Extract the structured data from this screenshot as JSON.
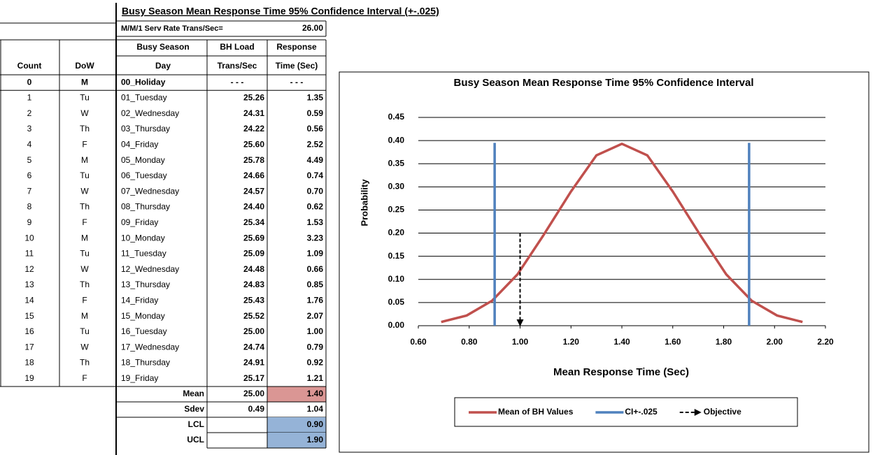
{
  "table": {
    "title": "Busy Season Mean Response Time 95% Confidence Interval (+-.025)",
    "serv_rate_label": "M/M/1 Serv Rate Trans/Sec=",
    "serv_rate": "26.00",
    "left_header": [
      "Count",
      "DoW"
    ],
    "header_rows": [
      [
        "Busy Season",
        "BH Load",
        "Response"
      ],
      [
        "Day",
        "Trans/Sec",
        "Time (Sec)"
      ]
    ],
    "rows": [
      [
        "0",
        "M",
        "00_Holiday",
        "- - -",
        "- - -"
      ],
      [
        "1",
        "Tu",
        "01_Tuesday",
        "25.26",
        "1.35"
      ],
      [
        "2",
        "W",
        "02_Wednesday",
        "24.31",
        "0.59"
      ],
      [
        "3",
        "Th",
        "03_Thursday",
        "24.22",
        "0.56"
      ],
      [
        "4",
        "F",
        "04_Friday",
        "25.60",
        "2.52"
      ],
      [
        "5",
        "M",
        "05_Monday",
        "25.78",
        "4.49"
      ],
      [
        "6",
        "Tu",
        "06_Tuesday",
        "24.66",
        "0.74"
      ],
      [
        "7",
        "W",
        "07_Wednesday",
        "24.57",
        "0.70"
      ],
      [
        "8",
        "Th",
        "08_Thursday",
        "24.40",
        "0.62"
      ],
      [
        "9",
        "F",
        "09_Friday",
        "25.34",
        "1.53"
      ],
      [
        "10",
        "M",
        "10_Monday",
        "25.69",
        "3.23"
      ],
      [
        "11",
        "Tu",
        "11_Tuesday",
        "25.09",
        "1.09"
      ],
      [
        "12",
        "W",
        "12_Wednesday",
        "24.48",
        "0.66"
      ],
      [
        "13",
        "Th",
        "13_Thursday",
        "24.83",
        "0.85"
      ],
      [
        "14",
        "F",
        "14_Friday",
        "25.43",
        "1.76"
      ],
      [
        "15",
        "M",
        "15_Monday",
        "25.52",
        "2.07"
      ],
      [
        "16",
        "Tu",
        "16_Tuesday",
        "25.00",
        "1.00"
      ],
      [
        "17",
        "W",
        "17_Wednesday",
        "24.74",
        "0.79"
      ],
      [
        "18",
        "Th",
        "18_Thursday",
        "24.91",
        "0.92"
      ],
      [
        "19",
        "F",
        "19_Friday",
        "25.17",
        "1.21"
      ]
    ],
    "summary": [
      [
        "Mean",
        "25.00",
        "1.40"
      ],
      [
        "Sdev",
        "0.49",
        "1.04"
      ],
      [
        "LCL",
        "0.90"
      ],
      [
        "UCL",
        "1.90"
      ]
    ]
  },
  "chart_data": {
    "type": "line",
    "title": "Busy Season Mean Response Time 95% Confidence Interval",
    "x_label": "Mean Response Time (Sec)",
    "y_label": "Probability",
    "xlim": [
      0.6,
      2.2
    ],
    "xticks": [
      {
        "value": 0.6,
        "label": "0.60"
      },
      {
        "value": 0.8,
        "label": "0.80"
      },
      {
        "value": 1.0,
        "label": "1.00"
      },
      {
        "value": 1.2,
        "label": "1.20"
      },
      {
        "value": 1.4,
        "label": "1.40"
      },
      {
        "value": 1.6,
        "label": "1.60"
      },
      {
        "value": 1.8,
        "label": "1.80"
      },
      {
        "value": 2.0,
        "label": "2.00"
      },
      {
        "value": 2.2,
        "label": "2.20"
      }
    ],
    "ylim": [
      0,
      0.45
    ],
    "yticks": [
      {
        "value": 0,
        "label": "0.00"
      },
      {
        "value": 0.05,
        "label": "0.05"
      },
      {
        "value": 0.1,
        "label": "0.10"
      },
      {
        "value": 0.15,
        "label": "0.15"
      },
      {
        "value": 0.2,
        "label": "0.20"
      },
      {
        "value": 0.25,
        "label": "0.25"
      },
      {
        "value": 0.3,
        "label": "0.30"
      },
      {
        "value": 0.35,
        "label": "0.35"
      },
      {
        "value": 0.4,
        "label": "0.40"
      },
      {
        "value": 0.45,
        "label": "0.45"
      }
    ],
    "grid": true,
    "legend": "bottom",
    "series": [
      {
        "name": "Mean of BH Values",
        "color": "#c0504d",
        "style": "solid",
        "x": [
          0.69,
          0.79,
          0.89,
          0.99,
          1.09,
          1.2,
          1.3,
          1.4,
          1.5,
          1.6,
          1.71,
          1.81,
          1.91,
          2.01,
          2.11
        ],
        "values": [
          0.008,
          0.022,
          0.054,
          0.111,
          0.194,
          0.29,
          0.368,
          0.393,
          0.368,
          0.29,
          0.194,
          0.111,
          0.054,
          0.022,
          0.008
        ]
      },
      {
        "name": "CI+-.025",
        "color": "#4f81bd",
        "style": "solid",
        "x": [
          0.9,
          0.9,
          null,
          1.9,
          1.9
        ],
        "values": [
          0,
          0.395,
          null,
          0,
          0.395
        ]
      },
      {
        "name": "Objective",
        "color": "#000000",
        "style": "dashed-arrow",
        "x": [
          1.0,
          1.0
        ],
        "values": [
          0.2,
          0
        ]
      }
    ]
  }
}
